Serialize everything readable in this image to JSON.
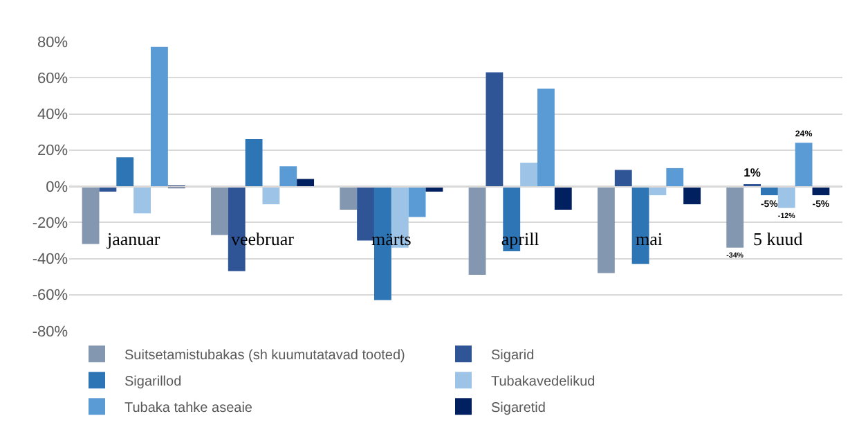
{
  "chart_data": {
    "type": "bar",
    "categories": [
      "jaanuar",
      "veebruar",
      "märts",
      "aprill",
      "mai",
      "5 kuud"
    ],
    "series": [
      {
        "name": "Suitsetamistubakas (sh kuumutatavad tooted)",
        "color": "#8497b0",
        "values": [
          -32,
          -27,
          -13,
          -49,
          -48,
          -34
        ],
        "value_labels": [
          null,
          null,
          null,
          null,
          null,
          "-34%"
        ]
      },
      {
        "name": "Sigarid",
        "color": "#2f5597",
        "values": [
          -3,
          -47,
          -30,
          63,
          9,
          1
        ],
        "value_labels": [
          null,
          null,
          null,
          null,
          null,
          "1%"
        ]
      },
      {
        "name": "Sigarillod",
        "color": "#2e75b6",
        "values": [
          16,
          26,
          -63,
          -36,
          -43,
          -5
        ],
        "value_labels": [
          null,
          null,
          null,
          null,
          null,
          "-5%"
        ]
      },
      {
        "name": "Tubakavedelikud",
        "color": "#9dc3e6",
        "values": [
          -15,
          -10,
          -34,
          13,
          -5,
          -12
        ],
        "value_labels": [
          null,
          null,
          null,
          null,
          null,
          "-12%"
        ]
      },
      {
        "name": "Tubaka tahke aseaie",
        "color": "#5b9bd5",
        "values": [
          77,
          11,
          -17,
          54,
          10,
          24
        ],
        "value_labels": [
          null,
          null,
          null,
          null,
          null,
          "24%"
        ]
      },
      {
        "name": "Sigaretid",
        "color": "#002060",
        "values": [
          -1,
          4,
          -3,
          -13,
          -10,
          -5
        ],
        "value_labels": [
          null,
          null,
          null,
          null,
          null,
          "-5%"
        ]
      }
    ],
    "ylim": [
      -80,
      80
    ],
    "yticks": [
      {
        "value": -80,
        "label": "-80%"
      },
      {
        "value": -60,
        "label": "-60%"
      },
      {
        "value": -40,
        "label": "-40%"
      },
      {
        "value": -20,
        "label": "-20%"
      },
      {
        "value": 0,
        "label": "0%"
      },
      {
        "value": 20,
        "label": "20%"
      },
      {
        "value": 40,
        "label": "40%"
      },
      {
        "value": 60,
        "label": "60%"
      },
      {
        "value": 80,
        "label": "80%"
      }
    ],
    "grid": "y",
    "legend": "bottom"
  }
}
